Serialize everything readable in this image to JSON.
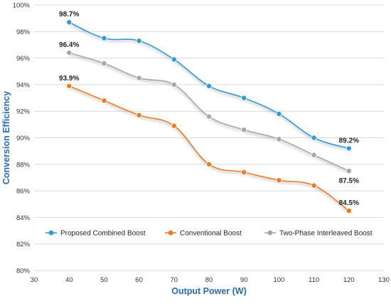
{
  "chart_data": {
    "type": "line",
    "x": [
      40,
      50,
      60,
      70,
      80,
      90,
      100,
      110,
      120
    ],
    "series": [
      {
        "name": "Proposed Combined Boost",
        "color": "#2e9bd6",
        "values": [
          98.7,
          97.5,
          97.3,
          95.9,
          93.9,
          93.0,
          91.8,
          90.0,
          89.2
        ]
      },
      {
        "name": "Conventional Boost",
        "color": "#f07a22",
        "values": [
          93.9,
          92.8,
          91.7,
          90.9,
          88.0,
          87.4,
          86.8,
          86.4,
          84.5
        ]
      },
      {
        "name": "Two-Phase Interleaved Boost",
        "color": "#a6a6a6",
        "values": [
          96.4,
          95.6,
          94.5,
          94.0,
          91.6,
          90.6,
          89.9,
          88.7,
          87.5
        ]
      }
    ],
    "annotations": [
      {
        "series": 0,
        "x": 40,
        "text": "98.7%",
        "placement": "above"
      },
      {
        "series": 1,
        "x": 40,
        "text": "93.9%",
        "placement": "above"
      },
      {
        "series": 2,
        "x": 40,
        "text": "96.4%",
        "placement": "above"
      },
      {
        "series": 0,
        "x": 120,
        "text": "89.2%",
        "placement": "above"
      },
      {
        "series": 2,
        "x": 120,
        "text": "87.5%",
        "placement": "below"
      },
      {
        "series": 1,
        "x": 120,
        "text": "84.5%",
        "placement": "above"
      }
    ],
    "xlabel": "Output Power (W)",
    "ylabel": "Conversion Efficiency",
    "xlim": [
      30,
      130
    ],
    "ylim": [
      80,
      100
    ],
    "xticks": [
      30,
      40,
      50,
      60,
      70,
      80,
      90,
      100,
      110,
      120,
      130
    ],
    "yticks": [
      80,
      82,
      84,
      86,
      88,
      90,
      92,
      94,
      96,
      98,
      100
    ],
    "ytick_suffix": "%",
    "grid": "horizontal",
    "legend_position": "bottom-inside"
  }
}
